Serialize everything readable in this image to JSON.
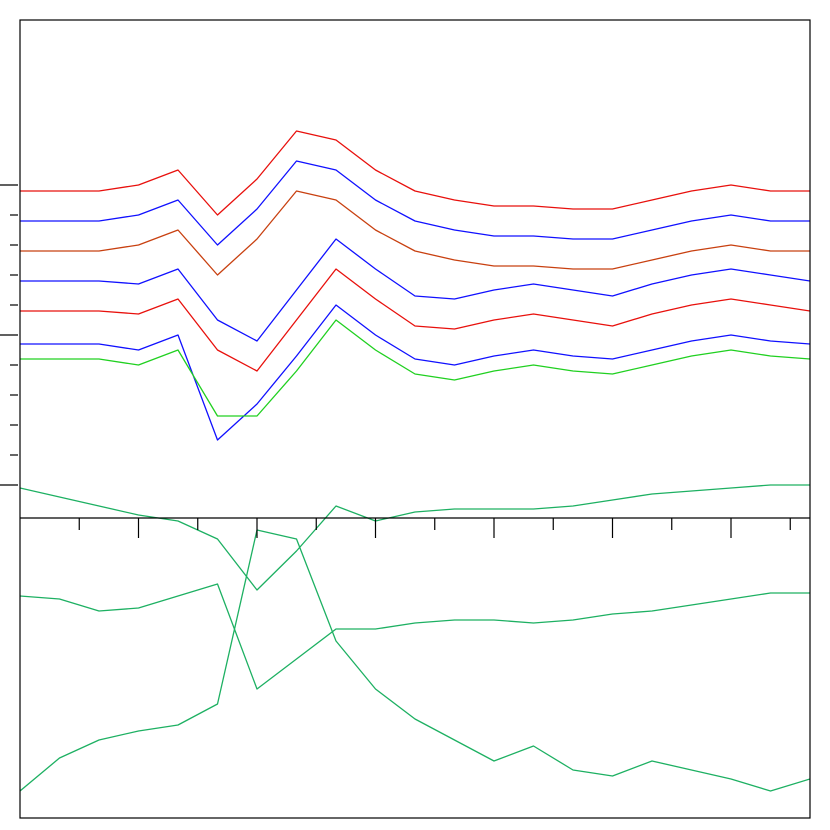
{
  "chart_data": {
    "type": "line",
    "x": [
      0,
      20,
      40,
      60,
      80,
      100,
      120,
      140,
      160,
      180,
      200,
      220,
      240,
      260,
      280,
      300,
      320,
      340,
      360,
      380,
      400
    ],
    "xlim": [
      0,
      400
    ],
    "xticks": [
      30,
      60,
      90,
      120,
      150,
      180,
      210,
      240,
      270,
      300,
      330,
      360,
      390
    ],
    "ylim": [
      -11.1,
      15.5
    ],
    "yticks": [
      0,
      1,
      2,
      3,
      4,
      5,
      6,
      7,
      8,
      9,
      10
    ],
    "series": [
      {
        "color": "#e8100c",
        "values": [
          9.8,
          9.8,
          9.8,
          10,
          10.5,
          9,
          10.2,
          11.8,
          11.5,
          10.5,
          9.8,
          9.5,
          9.3,
          9.3,
          9.2,
          9.2,
          9.5,
          9.8,
          10,
          9.8,
          9.8
        ]
      },
      {
        "color": "#1010ff",
        "values": [
          8.8,
          8.8,
          8.8,
          9,
          9.5,
          8,
          9.2,
          10.8,
          10.5,
          9.5,
          8.8,
          8.5,
          8.3,
          8.3,
          8.2,
          8.2,
          8.5,
          8.8,
          9,
          8.8,
          8.8
        ]
      },
      {
        "color": "#c84010",
        "values": [
          7.8,
          7.8,
          7.8,
          8,
          8.5,
          7,
          8.2,
          9.8,
          9.5,
          8.5,
          7.8,
          7.5,
          7.3,
          7.3,
          7.2,
          7.2,
          7.5,
          7.8,
          8,
          7.8,
          7.8
        ]
      },
      {
        "color": "#1010ff",
        "values": [
          6.8,
          6.8,
          6.8,
          6.7,
          7.2,
          5.5,
          4.8,
          6.5,
          8.2,
          7.2,
          6.3,
          6.2,
          6.5,
          6.7,
          6.5,
          6.3,
          6.7,
          7,
          7.2,
          7,
          6.8
        ]
      },
      {
        "color": "#e8100c",
        "values": [
          5.8,
          5.8,
          5.8,
          5.7,
          6.2,
          4.5,
          3.8,
          5.5,
          7.2,
          6.2,
          5.3,
          5.2,
          5.5,
          5.7,
          5.5,
          5.3,
          5.7,
          6,
          6.2,
          6,
          5.8
        ]
      },
      {
        "color": "#1010ff",
        "values": [
          4.7,
          4.7,
          4.7,
          4.5,
          5,
          1.5,
          2.7,
          4.3,
          6,
          5,
          4.2,
          4,
          4.3,
          4.5,
          4.3,
          4.2,
          4.5,
          4.8,
          5,
          4.8,
          4.7
        ]
      },
      {
        "color": "#20d020",
        "values": [
          4.2,
          4.2,
          4.2,
          4,
          4.5,
          2.3,
          2.3,
          3.8,
          5.5,
          4.5,
          3.7,
          3.5,
          3.8,
          4,
          3.8,
          3.7,
          4,
          4.3,
          4.5,
          4.3,
          4.2
        ]
      },
      {
        "color": "#1db062",
        "values": [
          -0.1,
          -0.4,
          -0.7,
          -1,
          -1.2,
          -1.8,
          -3.5,
          -2.2,
          -0.7,
          -1.2,
          -0.9,
          -0.8,
          -0.8,
          -0.8,
          -0.7,
          -0.5,
          -0.3,
          -0.2,
          -0.1,
          0,
          0
        ]
      },
      {
        "color": "#1db062",
        "values": [
          -3.7,
          -3.8,
          -4.2,
          -4.1,
          -3.7,
          -3.3,
          -6.8,
          -5.8,
          -4.8,
          -4.8,
          -4.6,
          -4.5,
          -4.5,
          -4.6,
          -4.5,
          -4.3,
          -4.2,
          -4,
          -3.8,
          -3.6,
          -3.6
        ]
      },
      {
        "color": "#1db062",
        "values": [
          -10.2,
          -9.1,
          -8.5,
          -8.2,
          -8,
          -7.3,
          -1.5,
          -1.8,
          -5.2,
          -6.8,
          -7.8,
          -8.5,
          -9.2,
          -8.7,
          -9.5,
          -9.7,
          -9.2,
          -9.5,
          -9.8,
          -10.2,
          -9.8
        ]
      }
    ]
  }
}
